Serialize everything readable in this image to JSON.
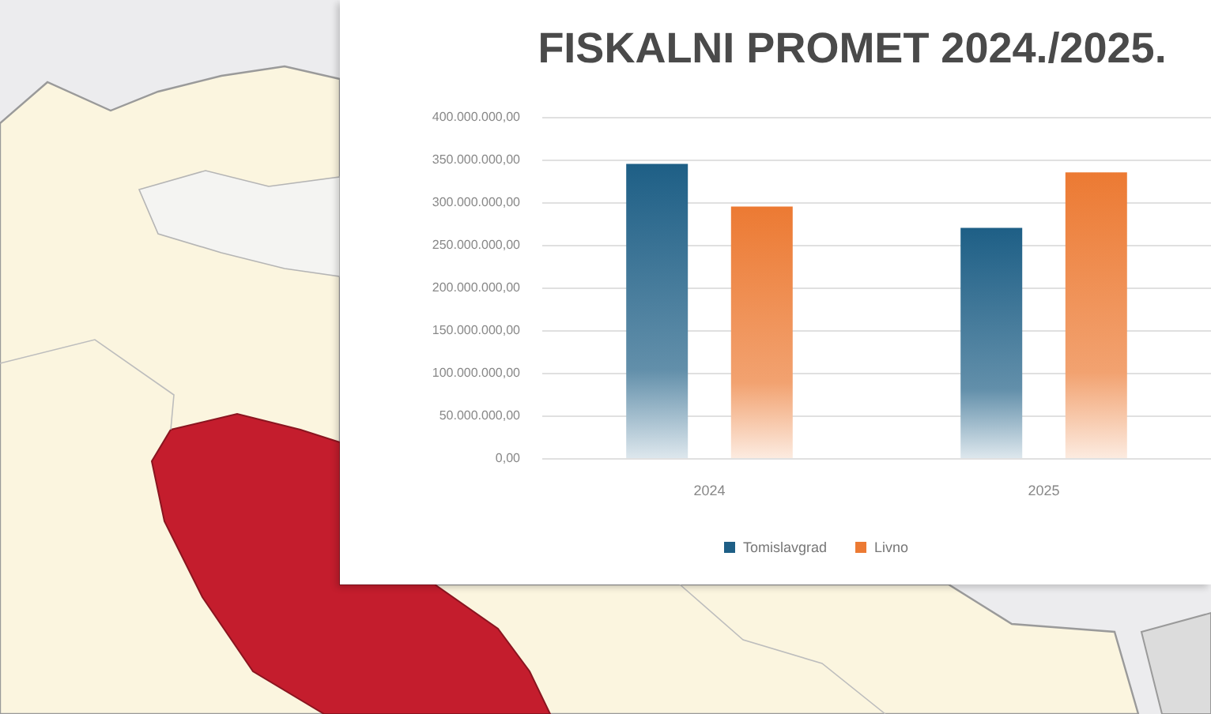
{
  "chart_data": {
    "type": "bar",
    "title": "FISKALNI PROMET 2024./2025.",
    "categories": [
      "2024",
      "2025"
    ],
    "series": [
      {
        "name": "Tomislavgrad",
        "color": "#1e5f86",
        "values": [
          345000000,
          270000000
        ]
      },
      {
        "name": "Livno",
        "color": "#ec7a33",
        "values": [
          295000000,
          335000000
        ]
      }
    ],
    "ylim": [
      0,
      400000000
    ],
    "yticks": [
      {
        "value": 0,
        "label": "0,00"
      },
      {
        "value": 50000000,
        "label": "50.000.000,00"
      },
      {
        "value": 100000000,
        "label": "100.000.000,00"
      },
      {
        "value": 150000000,
        "label": "150.000.000,00"
      },
      {
        "value": 200000000,
        "label": "200.000.000,00"
      },
      {
        "value": 250000000,
        "label": "250.000.000,00"
      },
      {
        "value": 300000000,
        "label": "300.000.000,00"
      },
      {
        "value": 350000000,
        "label": "350.000.000,00"
      },
      {
        "value": 400000000,
        "label": "400.000.000,00"
      }
    ],
    "grid": "y",
    "legend": "bottom"
  }
}
